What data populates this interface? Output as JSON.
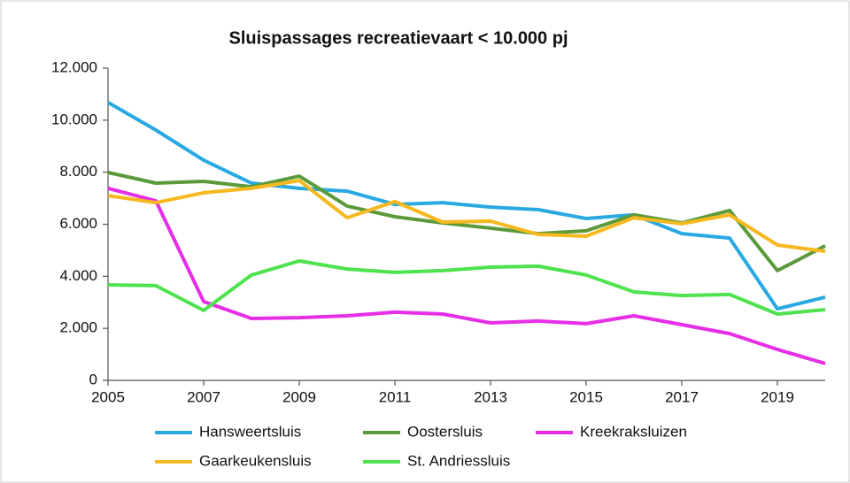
{
  "chart_data": {
    "type": "line",
    "title": "Sluispassages recreatievaart < 10.000 pj",
    "x": [
      2005,
      2006,
      2007,
      2008,
      2009,
      2010,
      2011,
      2012,
      2013,
      2014,
      2015,
      2016,
      2017,
      2018,
      2019,
      2020
    ],
    "series": [
      {
        "name": "Hansweertsluis",
        "color": "#29a9e1",
        "values": [
          10680,
          9620,
          8460,
          7580,
          7380,
          7270,
          6760,
          6830,
          6660,
          6560,
          6220,
          6360,
          5640,
          5470,
          2750,
          3200
        ]
      },
      {
        "name": "Oostersluis",
        "color": "#5b9a3b",
        "values": [
          7990,
          7580,
          7650,
          7440,
          7850,
          6700,
          6290,
          6050,
          5850,
          5640,
          5750,
          6360,
          6050,
          6530,
          4220,
          5170
        ]
      },
      {
        "name": "Kreekraksluizen",
        "color": "#e62ee6",
        "values": [
          7380,
          6900,
          3030,
          2380,
          2410,
          2480,
          2620,
          2550,
          2210,
          2280,
          2180,
          2480,
          2140,
          1800,
          1190,
          650
        ]
      },
      {
        "name": "Gaarkeukensluis",
        "color": "#f5b81e",
        "values": [
          7100,
          6830,
          7210,
          7380,
          7680,
          6250,
          6870,
          6080,
          6120,
          5610,
          5540,
          6250,
          6020,
          6360,
          5200,
          4960
        ]
      },
      {
        "name": "St. Andriessluis",
        "color": "#4fe24f",
        "values": [
          3670,
          3640,
          2690,
          4050,
          4590,
          4280,
          4150,
          4220,
          4350,
          4390,
          4050,
          3400,
          3260,
          3300,
          2550,
          2720
        ]
      }
    ],
    "xlim": [
      2005,
      2020
    ],
    "xticks": [
      2005,
      2007,
      2009,
      2011,
      2013,
      2015,
      2017,
      2019
    ],
    "ylim": [
      0,
      12000
    ],
    "yticks": [
      0,
      {
        "value": 2000,
        "label": "2.000"
      },
      {
        "value": 4000,
        "label": "4.000"
      },
      {
        "value": 6000,
        "label": "6.000"
      },
      {
        "value": 8000,
        "label": "8.000"
      },
      {
        "value": 10000,
        "label": "10.000"
      },
      {
        "value": 12000,
        "label": "12.000"
      }
    ],
    "legend": "bottom"
  }
}
